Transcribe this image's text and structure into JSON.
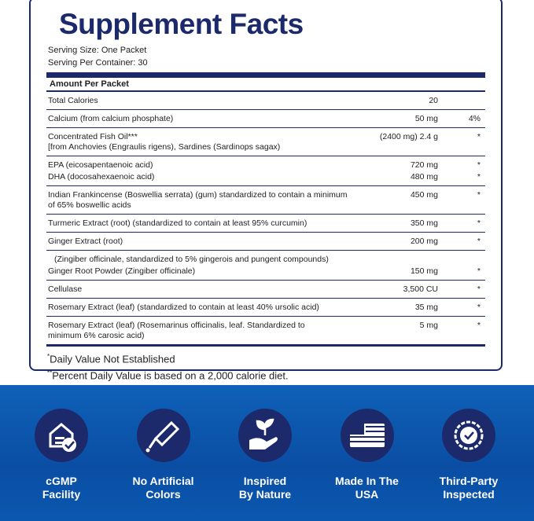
{
  "title": "Supplement Facts",
  "serving": [
    "Serving Size: One Packet",
    "Serving Per Container: 30"
  ],
  "header": "Amount Per Packet",
  "groups": [
    {
      "items": [
        {
          "label": [
            "Total Calories"
          ],
          "amount": "20"
        }
      ]
    },
    {
      "items": [
        {
          "label": [
            "Calcium (from calcium phosphate)"
          ],
          "amount": "50 mg",
          "dv": "4%"
        }
      ]
    },
    {
      "items": [
        {
          "label": [
            "Concentrated Fish Oil***",
            "[from Anchovies (Engraulis rigens), Sardines (Sardinops sagax)"
          ],
          "amount": "(2400 mg) 2.4 g",
          "dv": "*"
        }
      ]
    },
    {
      "items": [
        {
          "label": [
            "EPA (eicosapentaenoic acid)"
          ],
          "amount": "720 mg",
          "dv": "*"
        },
        {
          "label": [
            "DHA (docosahexaenoic acid)"
          ],
          "amount": "480 mg",
          "dv": "*"
        }
      ]
    },
    {
      "items": [
        {
          "label": [
            "Indian Frankincense (Boswellia serrata) (gum) standardized to contain a minimum",
            "of 65% boswellic acids"
          ],
          "amount": "450 mg",
          "dv": "*"
        }
      ]
    },
    {
      "items": [
        {
          "label": [
            "Turmeric Extract (root) (standardized to contain at least 95% curcumin)"
          ],
          "amount": "350 mg",
          "dv": "*"
        }
      ]
    },
    {
      "items": [
        {
          "label": [
            "Ginger Extract (root)"
          ],
          "amount": "200 mg",
          "dv": "*"
        }
      ]
    },
    {
      "items": [
        {
          "label": [
            "(Zingiber officinale, standardized to 5% gingerois and pungent compounds)"
          ]
        },
        {
          "label": [
            "Ginger Root Powder (Zingiber officinale)"
          ],
          "amount": "150 mg",
          "dv": "*"
        }
      ]
    },
    {
      "items": [
        {
          "label": [
            "Cellulase"
          ],
          "amount": "3,500 CU",
          "dv": "*"
        }
      ]
    },
    {
      "items": [
        {
          "label": [
            "Rosemary Extract (leaf) (standardized to contain at least 40% ursolic acid)"
          ],
          "amount": "35 mg",
          "dv": "*"
        }
      ]
    },
    {
      "items": [
        {
          "label": [
            "Rosemary Extract (leaf) (Rosemarinus officinalis, leaf. Standardized to",
            "minimum 6% carosic acid)"
          ],
          "amount": "5 mg",
          "dv": "*"
        }
      ]
    }
  ],
  "footnotes": [
    {
      "mark": "*",
      "text": "Daily Value Not Established"
    },
    {
      "mark": "**",
      "text": "Percent Daily Value is based on a 2,000 calorie diet."
    }
  ],
  "badges": [
    {
      "lines": [
        "cGMP",
        "Facility"
      ]
    },
    {
      "lines": [
        "No Artificial",
        "Colors"
      ]
    },
    {
      "lines": [
        "Inspired",
        "By Nature"
      ]
    },
    {
      "lines": [
        "Made In The",
        "USA"
      ]
    },
    {
      "lines": [
        "Third-Party",
        "Inspected"
      ]
    }
  ]
}
